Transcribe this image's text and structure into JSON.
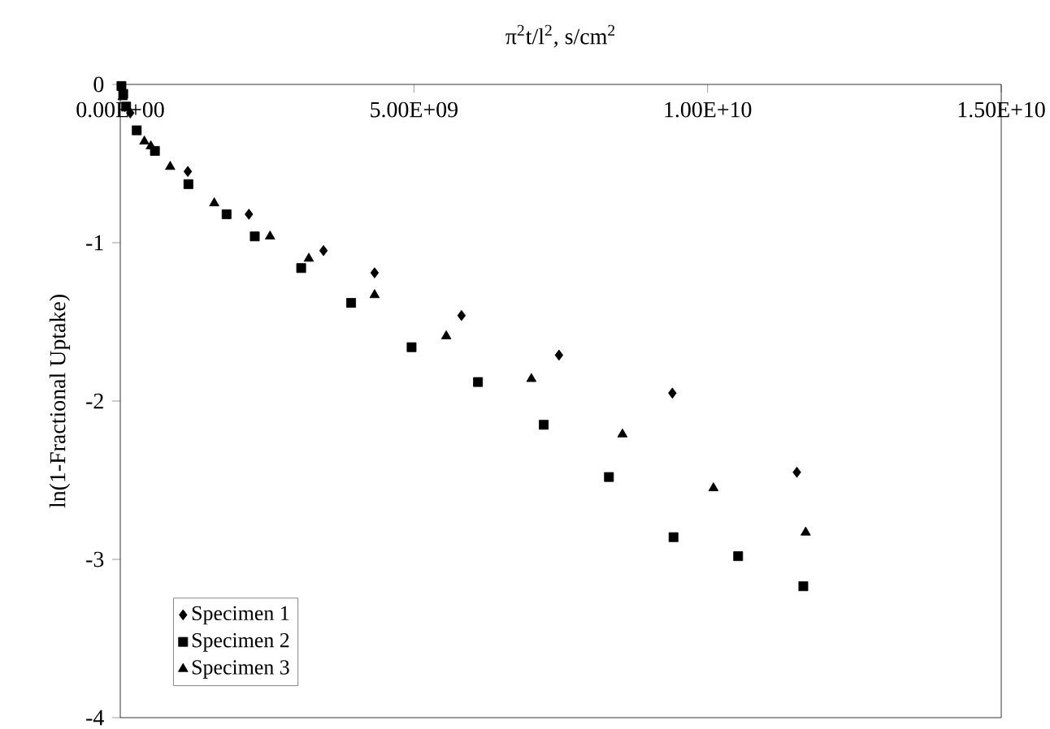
{
  "chart_data": {
    "type": "scatter",
    "xlabel": "π$^{2}$t/l$^{2}$, s/cm$^{2}$",
    "ylabel": "ln(1-Fractional Uptake)",
    "xlim": [
      0,
      15000000000.0
    ],
    "ylim": [
      -4,
      0
    ],
    "xticks": [
      {
        "value": 0,
        "label": "0.00E+00"
      },
      {
        "value": 5000000000.0,
        "label": "5.00E+09"
      },
      {
        "value": 10000000000.0,
        "label": "1.00E+10"
      },
      {
        "value": 15000000000.0,
        "label": "1.50E+10"
      }
    ],
    "yticks": [
      0,
      -1,
      -2,
      -3,
      -4
    ],
    "grid": false,
    "legend": "bottom left",
    "series": [
      {
        "name": "Specimen 1",
        "color": "#000000",
        "marker": "diamond",
        "x": [
          170000000.0,
          1150000000.0,
          2190000000.0,
          3460000000.0,
          4330000000.0,
          5810000000.0,
          7470000000.0,
          9400000000.0,
          11520000000.0
        ],
        "values": [
          -0.18,
          -0.55,
          -0.82,
          -1.05,
          -1.19,
          -1.46,
          -1.71,
          -1.95,
          -2.45
        ]
      },
      {
        "name": "Specimen 2",
        "color": "#000000",
        "marker": "square",
        "x": [
          20000000.0,
          50000000.0,
          100000000.0,
          280000000.0,
          590000000.0,
          1160000000.0,
          1810000000.0,
          2290000000.0,
          3080000000.0,
          3930000000.0,
          4960000000.0,
          6090000000.0,
          7210000000.0,
          8320000000.0,
          9420000000.0,
          10520000000.0,
          11630000000.0
        ],
        "values": [
          -0.01,
          -0.06,
          -0.14,
          -0.29,
          -0.42,
          -0.63,
          -0.82,
          -0.96,
          -1.16,
          -1.38,
          -1.66,
          -1.88,
          -2.15,
          -2.48,
          -2.86,
          -2.98,
          -3.17
        ]
      },
      {
        "name": "Specimen 3",
        "color": "#000000",
        "marker": "triangle",
        "x": [
          40000000.0,
          410000000.0,
          520000000.0,
          850000000.0,
          1600000000.0,
          2550000000.0,
          3210000000.0,
          4330000000.0,
          5550000000.0,
          7000000000.0,
          8550000000.0,
          10100000000.0,
          11670000000.0
        ],
        "values": [
          -0.08,
          -0.36,
          -0.39,
          -0.52,
          -0.75,
          -0.96,
          -1.1,
          -1.33,
          -1.59,
          -1.86,
          -2.21,
          -2.55,
          -2.83
        ]
      }
    ]
  }
}
